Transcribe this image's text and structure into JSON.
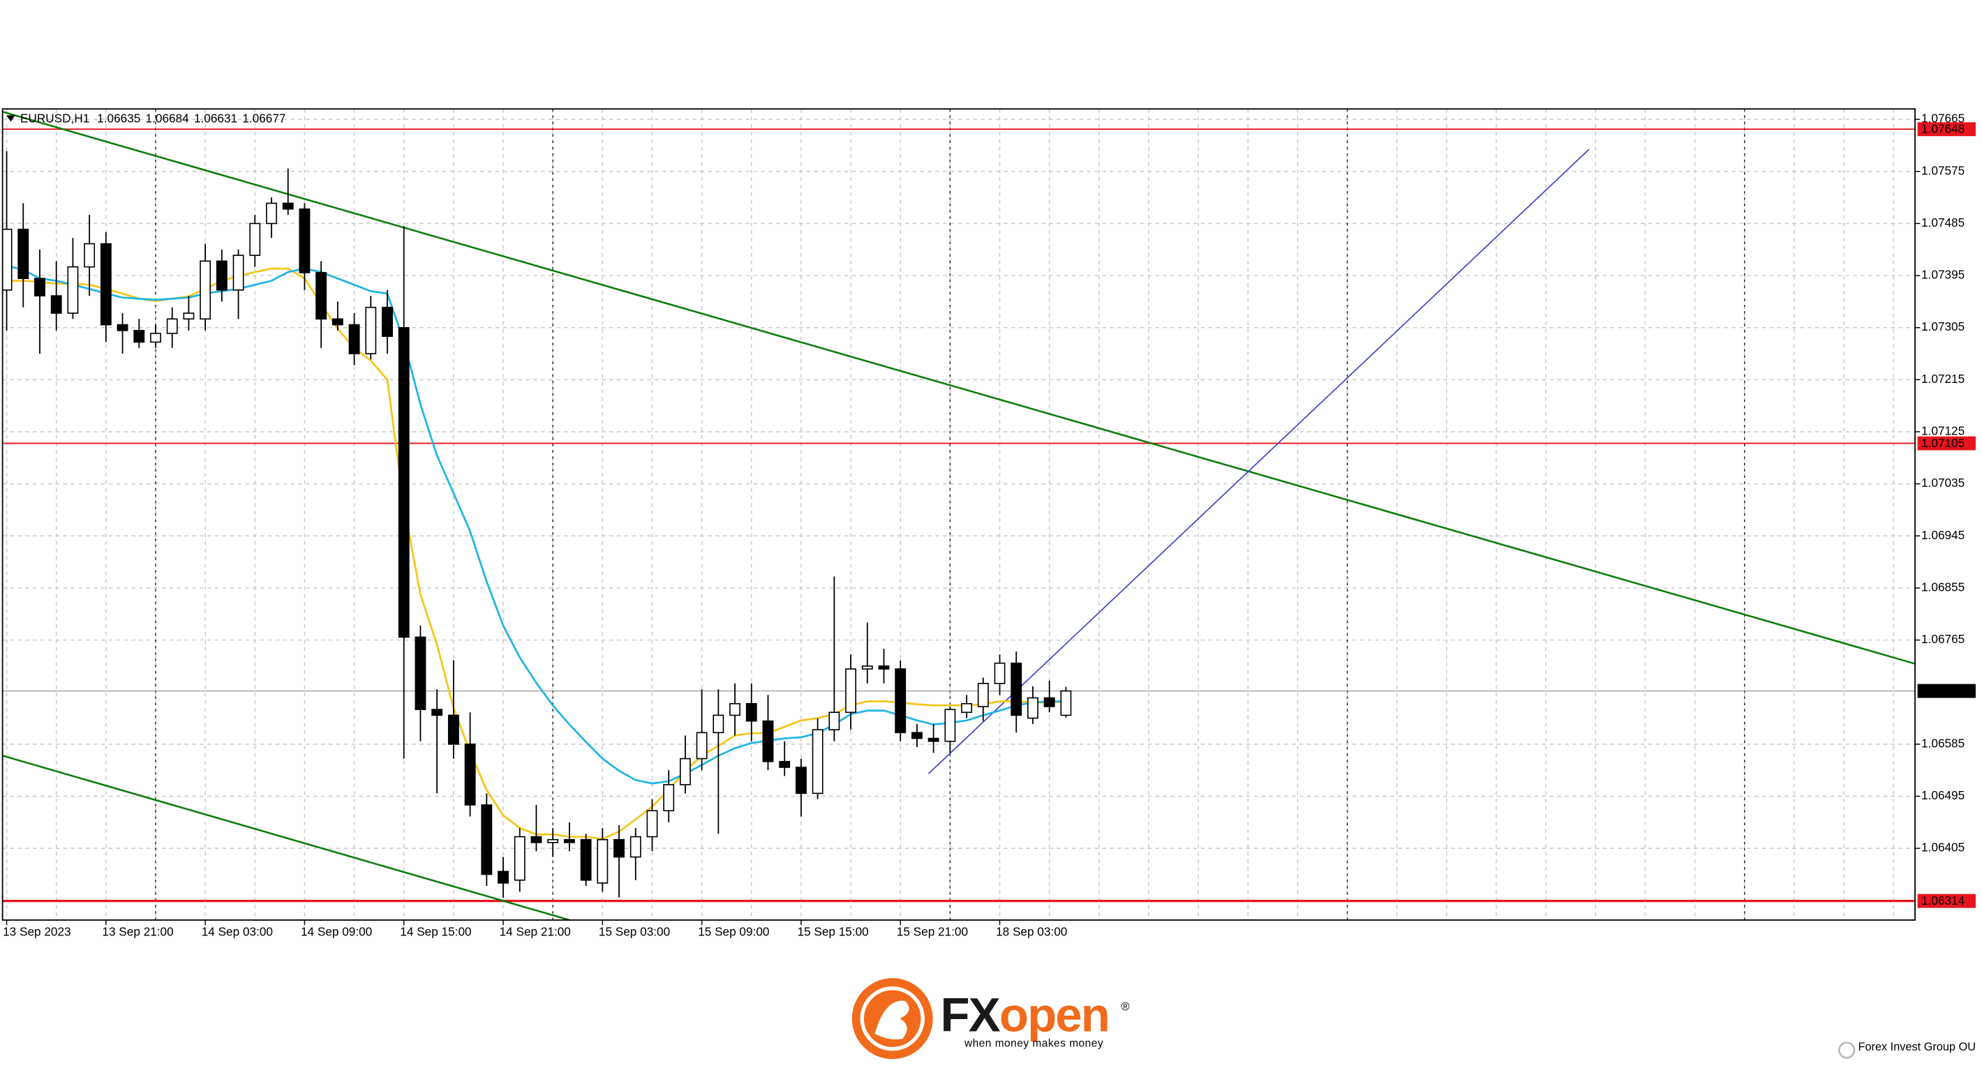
{
  "chart_data": {
    "type": "candlestick",
    "symbol": "EURUSD,H1",
    "categories": [
      "13 Sep 2023",
      null,
      null,
      null,
      null,
      null,
      "13 Sep 21:00",
      null,
      null,
      null,
      null,
      null,
      "14 Sep 03:00",
      null,
      null,
      null,
      null,
      null,
      "14 Sep 09:00",
      null,
      null,
      null,
      null,
      null,
      "14 Sep 15:00",
      null,
      null,
      null,
      null,
      null,
      "14 Sep 21:00",
      null,
      null,
      null,
      null,
      null,
      "15 Sep 03:00",
      null,
      null,
      null,
      null,
      null,
      "15 Sep 09:00",
      null,
      null,
      null,
      null,
      null,
      "15 Sep 15:00",
      null,
      null,
      null,
      null,
      null,
      "15 Sep 21:00",
      null,
      null,
      null,
      null,
      null,
      "18 Sep 03:00",
      null,
      null,
      null,
      null
    ],
    "open": [
      1.0737,
      1.07475,
      1.0739,
      1.0736,
      1.0733,
      1.0741,
      1.0745,
      1.0731,
      1.073,
      1.0728,
      1.07295,
      1.0732,
      1.0732,
      1.0742,
      1.0737,
      1.0743,
      1.07485,
      1.0752,
      1.0751,
      1.074,
      1.0732,
      1.0731,
      1.0726,
      1.0734,
      1.07305,
      1.0677,
      1.06645,
      1.06635,
      1.06585,
      1.0648,
      1.06365,
      1.0635,
      1.06425,
      1.06415,
      1.0642,
      1.0642,
      1.06345,
      1.0642,
      1.0639,
      1.06425,
      1.0647,
      1.06515,
      1.0656,
      1.06605,
      1.06635,
      1.06655,
      1.06625,
      1.06555,
      1.06545,
      1.065,
      1.0661,
      1.0664,
      1.06715,
      1.0672,
      1.06715,
      1.06605,
      1.06595,
      1.0659,
      1.0664,
      1.0665,
      1.0669,
      1.06725,
      1.0663,
      1.06665,
      1.06635
    ],
    "high": [
      1.0761,
      1.0752,
      1.0744,
      1.0742,
      1.0746,
      1.075,
      1.0747,
      1.0733,
      1.0732,
      1.0731,
      1.0734,
      1.0736,
      1.0745,
      1.0744,
      1.0744,
      1.075,
      1.0753,
      1.0758,
      1.0752,
      1.0742,
      1.0735,
      1.0733,
      1.0736,
      1.0737,
      1.0748,
      1.0679,
      1.0668,
      1.0673,
      1.0664,
      1.065,
      1.0639,
      1.0644,
      1.0648,
      1.0644,
      1.0645,
      1.0643,
      1.0644,
      1.06445,
      1.0644,
      1.0649,
      1.0654,
      1.066,
      1.0668,
      1.0668,
      1.0669,
      1.0669,
      1.0667,
      1.0659,
      1.0656,
      1.0663,
      1.06875,
      1.0674,
      1.06795,
      1.0675,
      1.0673,
      1.0662,
      1.0662,
      1.0665,
      1.0667,
      1.067,
      1.0674,
      1.06745,
      1.06685,
      1.06695,
      1.06684
    ],
    "low": [
      1.073,
      1.0734,
      1.0726,
      1.073,
      1.0732,
      1.0736,
      1.0728,
      1.0726,
      1.0727,
      1.0727,
      1.0727,
      1.073,
      1.073,
      1.0735,
      1.0732,
      1.0741,
      1.0746,
      1.075,
      1.0737,
      1.0727,
      1.073,
      1.0724,
      1.0725,
      1.0726,
      1.0656,
      1.0659,
      1.065,
      1.0656,
      1.0646,
      1.0634,
      1.0632,
      1.0633,
      1.064,
      1.0639,
      1.064,
      1.0634,
      1.0633,
      1.0632,
      1.0635,
      1.064,
      1.0645,
      1.065,
      1.0654,
      1.0643,
      1.066,
      1.0659,
      1.0654,
      1.0653,
      1.0646,
      1.0649,
      1.0659,
      1.0661,
      1.0669,
      1.0669,
      1.0659,
      1.0658,
      1.0657,
      1.0657,
      1.0663,
      1.06625,
      1.0667,
      1.06605,
      1.0662,
      1.0664,
      1.06631
    ],
    "close": [
      1.07475,
      1.0739,
      1.0736,
      1.0733,
      1.0741,
      1.0745,
      1.0731,
      1.073,
      1.0728,
      1.07295,
      1.0732,
      1.0733,
      1.0742,
      1.0737,
      1.0743,
      1.07485,
      1.0752,
      1.0751,
      1.074,
      1.0732,
      1.0731,
      1.0726,
      1.0734,
      1.0729,
      1.0677,
      1.06645,
      1.06635,
      1.06585,
      1.0648,
      1.0636,
      1.06345,
      1.06425,
      1.06415,
      1.0642,
      1.06415,
      1.0635,
      1.0642,
      1.0639,
      1.06425,
      1.0647,
      1.06515,
      1.0656,
      1.06605,
      1.06635,
      1.06655,
      1.06625,
      1.06555,
      1.06545,
      1.065,
      1.0661,
      1.0664,
      1.06715,
      1.0672,
      1.06715,
      1.06605,
      1.06595,
      1.0659,
      1.06645,
      1.06655,
      1.0669,
      1.06725,
      1.06635,
      1.06665,
      1.0665,
      1.06677
    ],
    "up_color": "#ffffff",
    "down_color": "#000000",
    "outline_color": "#000000",
    "series": [
      {
        "color": "#f5c518",
        "values": [
          1.07386,
          1.07386,
          1.07384,
          1.07381,
          1.07381,
          1.07379,
          1.07372,
          1.07364,
          1.07355,
          1.07351,
          1.07355,
          1.07359,
          1.07372,
          1.07386,
          1.07394,
          1.07401,
          1.07407,
          1.07407,
          1.0739,
          1.07346,
          1.07303,
          1.0727,
          1.07248,
          1.07215,
          1.06997,
          1.06844,
          1.06757,
          1.06648,
          1.06571,
          1.06506,
          1.06462,
          1.0644,
          1.06429,
          1.06429,
          1.06425,
          1.06425,
          1.06421,
          1.06434,
          1.06455,
          1.06477,
          1.06506,
          1.06539,
          1.06565,
          1.06582,
          1.066,
          1.06604,
          1.06604,
          1.06615,
          1.06626,
          1.0663,
          1.06637,
          1.06652,
          1.06659,
          1.06659,
          1.06657,
          1.06654,
          1.06652,
          1.06652,
          1.06652,
          1.06654,
          1.06659,
          1.06659,
          1.06657,
          1.06657,
          1.06659
        ]
      },
      {
        "color": "#1eb4e6",
        "values": [
          1.07412,
          1.07405,
          1.0739,
          1.07386,
          1.07379,
          1.07372,
          1.07364,
          1.07357,
          1.07355,
          1.07353,
          1.07355,
          1.07357,
          1.07364,
          1.07368,
          1.07372,
          1.07379,
          1.07386,
          1.07401,
          1.07407,
          1.07401,
          1.0739,
          1.07379,
          1.07368,
          1.07364,
          1.07281,
          1.07172,
          1.07084,
          1.07019,
          1.06953,
          1.06866,
          1.0679,
          1.06735,
          1.06691,
          1.06652,
          1.06619,
          1.06589,
          1.0656,
          1.06539,
          1.06523,
          1.06517,
          1.06521,
          1.06534,
          1.06549,
          1.06565,
          1.06578,
          1.06587,
          1.06591,
          1.06595,
          1.06597,
          1.06604,
          1.06619,
          1.06637,
          1.06643,
          1.06643,
          1.06635,
          1.06626,
          1.06619,
          1.06622,
          1.06626,
          1.06635,
          1.06643,
          1.06652,
          1.06657,
          1.06659,
          1.06659
        ]
      }
    ],
    "levels": [
      {
        "value": 1.07648,
        "color": "#e8141e"
      },
      {
        "value": 1.07105,
        "color": "#e8141e"
      },
      {
        "value": 1.06314,
        "color": "#e8141e"
      }
    ],
    "trendlines": [
      {
        "color": "#0a7a0a",
        "x": [
          -0.23,
          115.3
        ],
        "y": [
          1.07678,
          1.06724
        ]
      },
      {
        "color": "#0a7a0a",
        "x": [
          -0.23,
          34
        ],
        "y": [
          1.06565,
          1.06281
        ]
      },
      {
        "color": "#3c3cc8",
        "x": [
          55.7,
          95.6
        ],
        "y": [
          1.06534,
          1.07613
        ]
      }
    ],
    "ylim": [
      1.06281,
      1.07683
    ],
    "xlim": [
      -0.25,
      115.3
    ],
    "yticks": [
      1.07665,
      1.07575,
      1.07485,
      1.07395,
      1.07305,
      1.07215,
      1.07125,
      1.07035,
      1.06945,
      1.06855,
      1.06765,
      1.06585,
      1.06495,
      1.06405
    ],
    "grid": true
  },
  "footer": {
    "brand_fx": "FX",
    "brand_open": "open",
    "trademark": "®",
    "tagline": "when money makes money",
    "company": "Forex Invest Group OU"
  }
}
